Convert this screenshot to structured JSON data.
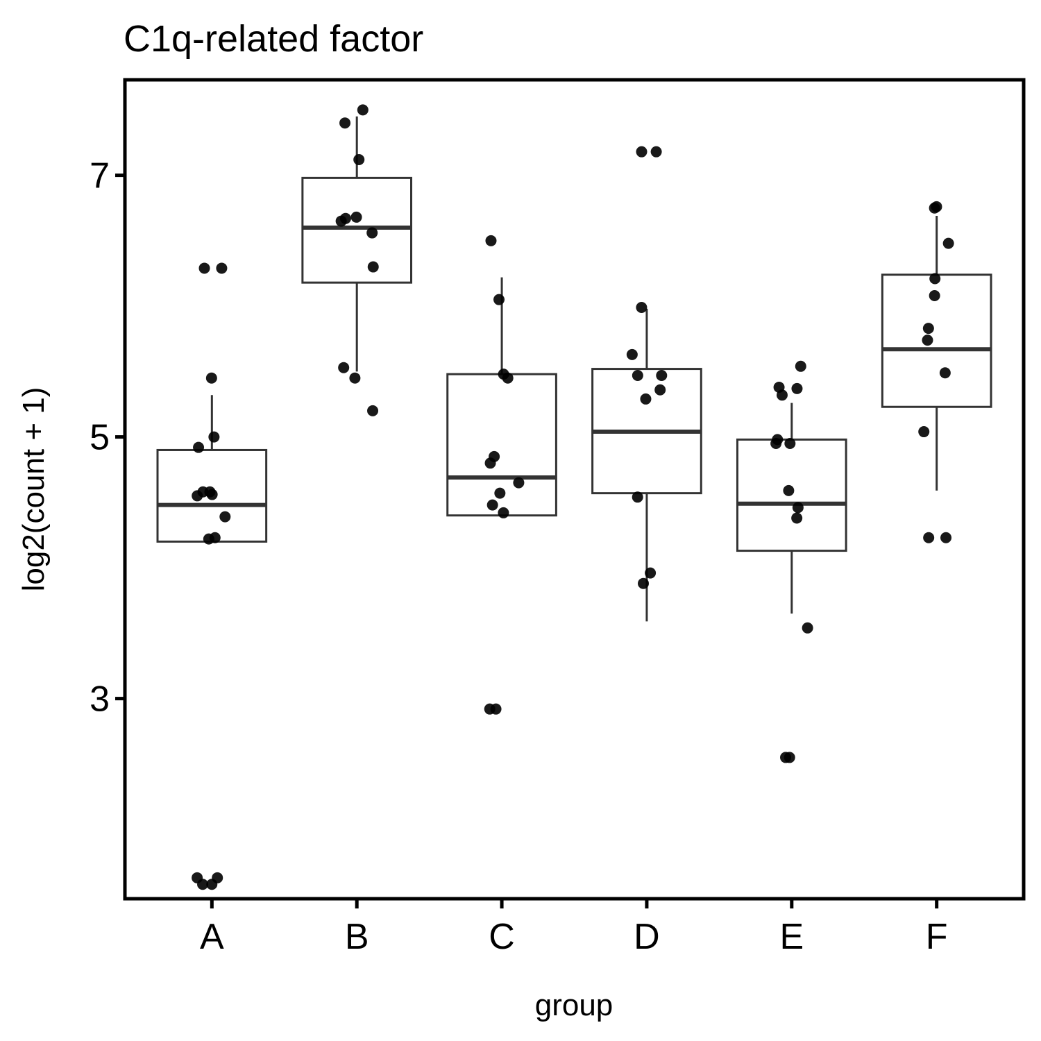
{
  "chart_data": {
    "type": "box",
    "title": "C1q-related factor",
    "xlabel": "group",
    "ylabel": "log2(count + 1)",
    "categories": [
      "A",
      "B",
      "C",
      "D",
      "E",
      "F"
    ],
    "ylim": [
      1.47,
      7.73
    ],
    "yticks": [
      3,
      5,
      7
    ],
    "grid": false,
    "legend": "none",
    "boxes": [
      {
        "group": "A",
        "lower_whisker": 4.2,
        "q1": 4.2,
        "median": 4.48,
        "q3": 4.9,
        "upper_whisker": 5.32
      },
      {
        "group": "B",
        "lower_whisker": 5.5,
        "q1": 6.18,
        "median": 6.6,
        "q3": 6.98,
        "upper_whisker": 7.45
      },
      {
        "group": "C",
        "lower_whisker": 4.4,
        "q1": 4.4,
        "median": 4.69,
        "q3": 5.48,
        "upper_whisker": 6.22
      },
      {
        "group": "D",
        "lower_whisker": 3.59,
        "q1": 4.57,
        "median": 5.04,
        "q3": 5.52,
        "upper_whisker": 5.98
      },
      {
        "group": "E",
        "lower_whisker": 3.65,
        "q1": 4.13,
        "median": 4.49,
        "q3": 4.98,
        "upper_whisker": 5.26
      },
      {
        "group": "F",
        "lower_whisker": 4.59,
        "q1": 5.23,
        "median": 5.67,
        "q3": 6.24,
        "upper_whisker": 6.69
      }
    ],
    "points": [
      {
        "group": "A",
        "values": [
          5.45,
          5.0,
          4.92,
          4.58,
          4.58,
          4.56,
          4.55,
          4.39,
          4.23,
          4.22,
          6.29,
          6.29,
          1.63,
          1.63,
          1.58,
          1.58
        ]
      },
      {
        "group": "B",
        "values": [
          7.5,
          7.4,
          7.12,
          6.68,
          6.67,
          6.65,
          6.56,
          6.3,
          5.53,
          5.45,
          5.2
        ]
      },
      {
        "group": "C",
        "values": [
          6.5,
          6.05,
          5.48,
          5.45,
          4.85,
          4.8,
          4.65,
          4.57,
          4.48,
          4.42,
          2.92,
          2.92
        ]
      },
      {
        "group": "D",
        "values": [
          7.18,
          7.18,
          5.99,
          5.63,
          5.47,
          5.47,
          5.36,
          5.29,
          4.54,
          3.96,
          3.88
        ]
      },
      {
        "group": "E",
        "values": [
          5.54,
          5.37,
          5.38,
          5.32,
          4.95,
          4.98,
          4.95,
          4.59,
          4.46,
          4.38,
          3.54,
          2.55,
          2.55
        ]
      },
      {
        "group": "F",
        "values": [
          6.76,
          6.75,
          6.48,
          6.21,
          6.08,
          5.83,
          5.74,
          5.49,
          5.04,
          4.23,
          4.23
        ]
      }
    ]
  }
}
